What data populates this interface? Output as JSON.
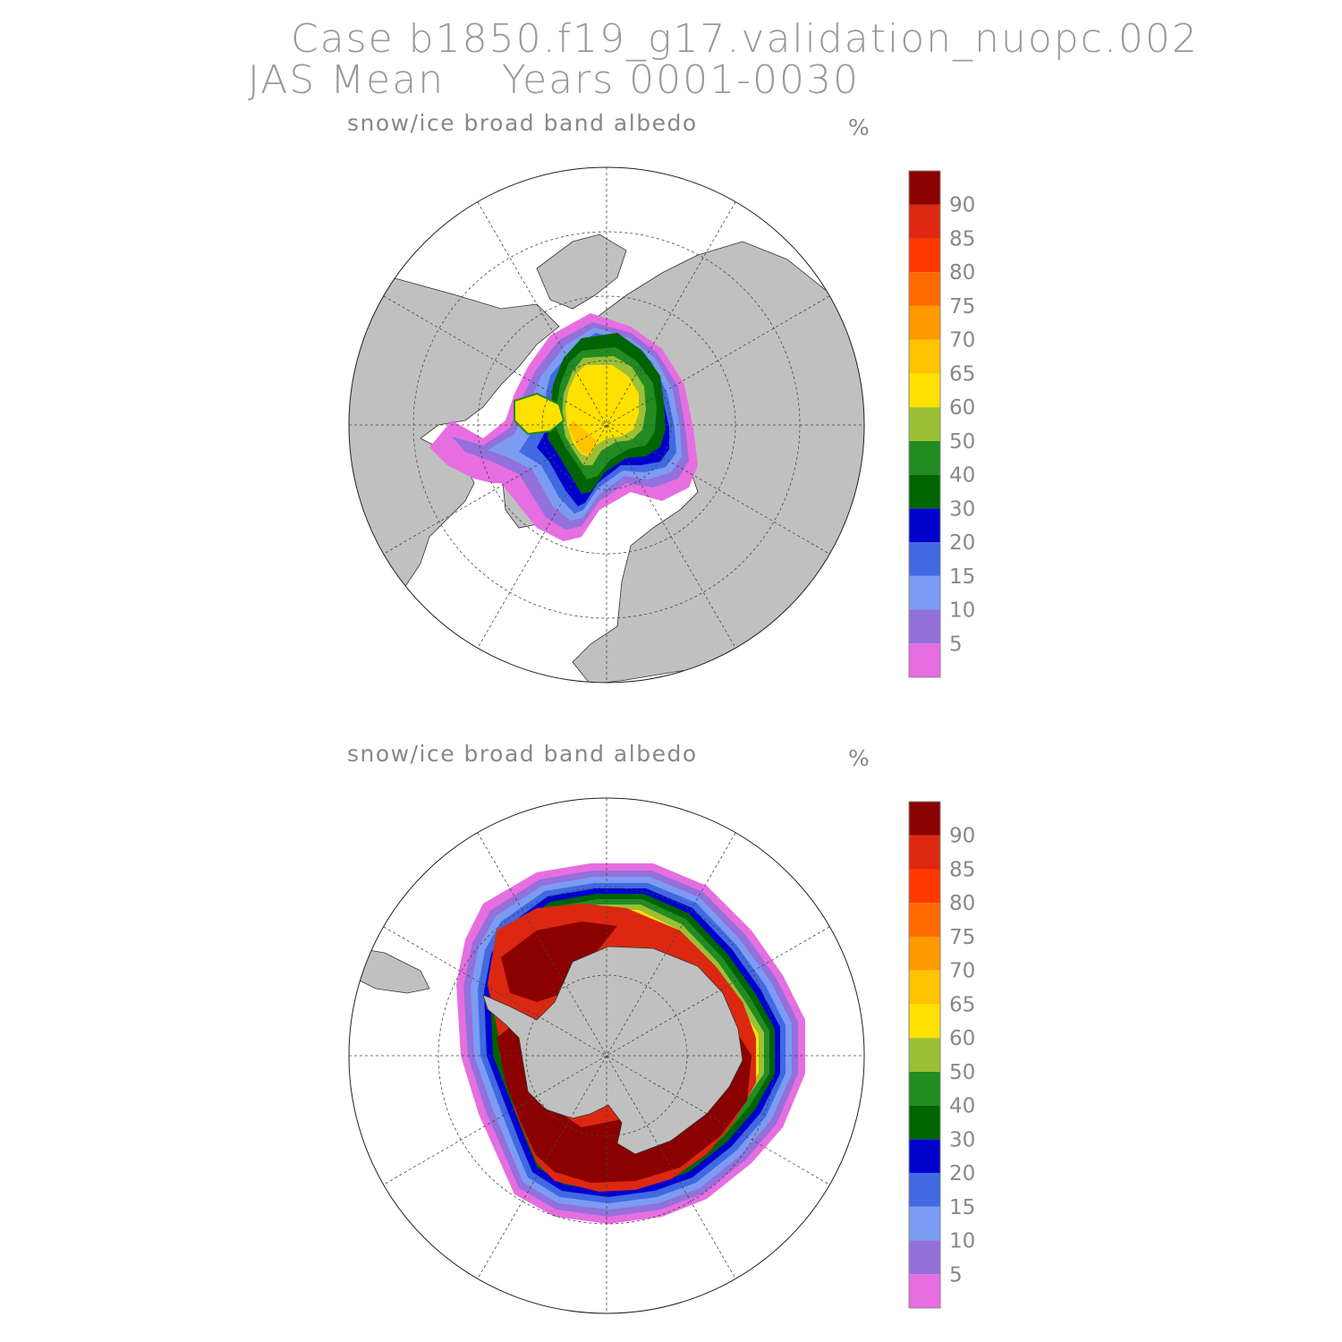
{
  "header": {
    "line1": "Case b1850.f19_g17.validation_nuopc.002",
    "line2": "JAS Mean    Years 0001-0030"
  },
  "colors": {
    "land": "#c0c0c0",
    "ocean": "#ffffff",
    "levels": [
      "#e66ee0",
      "#9370db",
      "#7b9cf2",
      "#4169e1",
      "#0000cd",
      "#006400",
      "#228b22",
      "#9bbf35",
      "#ffe100",
      "#ffc300",
      "#ff9a00",
      "#ff6a00",
      "#ff3800",
      "#dc2810",
      "#8b0000"
    ]
  },
  "panels": [
    {
      "name": "north",
      "title": "snow/ice broad band albedo",
      "unit": "%",
      "colorbar_labels": [
        "5",
        "10",
        "15",
        "20",
        "30",
        "40",
        "50",
        "60",
        "65",
        "70",
        "75",
        "80",
        "85",
        "90"
      ]
    },
    {
      "name": "south",
      "title": "snow/ice broad band albedo",
      "unit": "%",
      "colorbar_labels": [
        "5",
        "10",
        "15",
        "20",
        "30",
        "40",
        "50",
        "60",
        "65",
        "70",
        "75",
        "80",
        "85",
        "90"
      ]
    }
  ]
}
